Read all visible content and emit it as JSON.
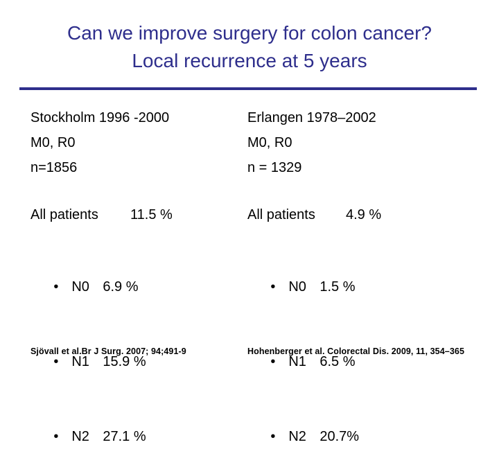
{
  "title": {
    "line1": "Can we improve surgery for colon cancer?",
    "line2": "Local recurrence at 5 years"
  },
  "colors": {
    "title": "#2e2e8c",
    "rule": "#2e2e8c"
  },
  "left": {
    "lines": [
      "Stockholm 1996 -2000",
      "M0, R0",
      "n=1856"
    ],
    "summary_label": "All patients",
    "summary_value": "11.5 %",
    "bullets": [
      {
        "marker": "•",
        "group": "N0",
        "value": "6.9 %"
      },
      {
        "marker": "•",
        "group": "N1",
        "value": "15.9 %"
      },
      {
        "marker": "•",
        "group": "N2",
        "value": "27.1 %"
      }
    ],
    "reference": "Sjövall et al.Br J Surg. 2007; 94;491-9"
  },
  "right": {
    "lines": [
      "Erlangen 1978–2002",
      "M0, R0",
      "n = 1329"
    ],
    "summary_label": "All patients",
    "summary_value": "4.9 %",
    "bullets": [
      {
        "marker": "•",
        "group": "N0",
        "value": "1.5 %"
      },
      {
        "marker": "•",
        "group": "N1",
        "value": "6.5 %"
      },
      {
        "marker": "•",
        "group": "N2",
        "value": "20.7%"
      }
    ],
    "reference": "Hohenberger et al. Colorectal Dis. 2009, 11, 354–365"
  }
}
